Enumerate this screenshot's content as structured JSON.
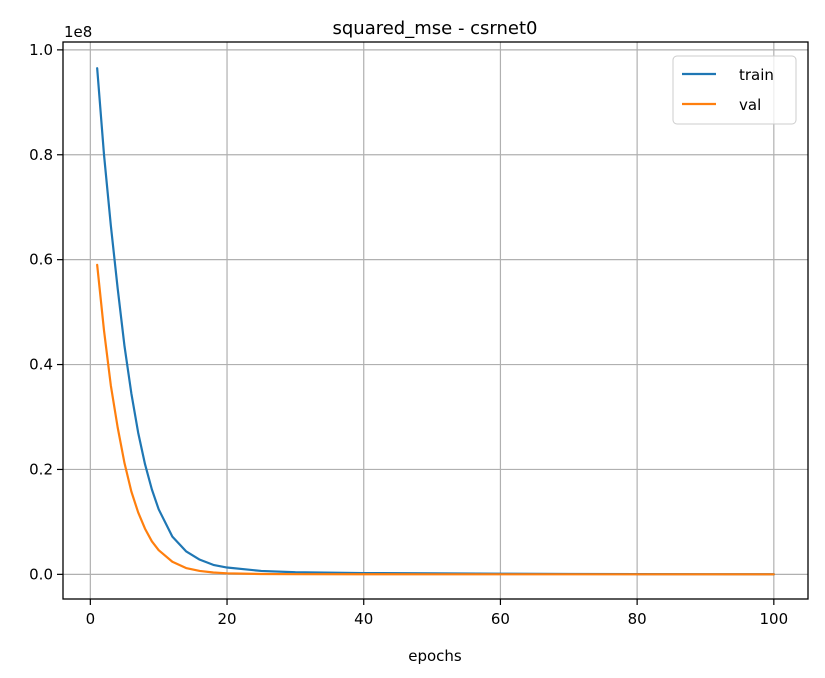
{
  "chart_data": {
    "type": "line",
    "title": "squared_mse - csrnet0",
    "xlabel": "epochs",
    "ylabel": "",
    "y_scale_label": "1e8",
    "xlim": [
      -4.0,
      105.0
    ],
    "ylim": [
      -0.047,
      1.015
    ],
    "x_ticks": [
      0,
      20,
      40,
      60,
      80,
      100
    ],
    "y_ticks": [
      0.0,
      0.2,
      0.4,
      0.6,
      0.8,
      1.0
    ],
    "x_tick_labels": [
      "0",
      "20",
      "40",
      "60",
      "80",
      "100"
    ],
    "y_tick_labels": [
      "0.0",
      "0.2",
      "0.4",
      "0.6",
      "0.8",
      "1.0"
    ],
    "grid": true,
    "legend_position": "top-right",
    "x": [
      1,
      2,
      3,
      4,
      5,
      6,
      7,
      8,
      9,
      10,
      12,
      14,
      16,
      18,
      20,
      25,
      30,
      40,
      50,
      60,
      70,
      80,
      90,
      100
    ],
    "series": [
      {
        "name": "train",
        "color": "#1f77b4",
        "values": [
          0.965,
          0.8,
          0.665,
          0.545,
          0.435,
          0.345,
          0.27,
          0.21,
          0.162,
          0.124,
          0.072,
          0.044,
          0.028,
          0.018,
          0.013,
          0.0065,
          0.004,
          0.0025,
          0.0018,
          0.0012,
          0.0008,
          0.0005,
          0.0003,
          0.0002
        ]
      },
      {
        "name": "val",
        "color": "#ff7f0e",
        "values": [
          0.59,
          0.465,
          0.36,
          0.28,
          0.212,
          0.158,
          0.118,
          0.087,
          0.063,
          0.046,
          0.024,
          0.012,
          0.0065,
          0.0035,
          0.002,
          0.0006,
          0.0003,
          0.0002,
          0.0001,
          0.0001,
          0.0001,
          0.0001,
          0.0001,
          0.0001
        ]
      }
    ]
  }
}
